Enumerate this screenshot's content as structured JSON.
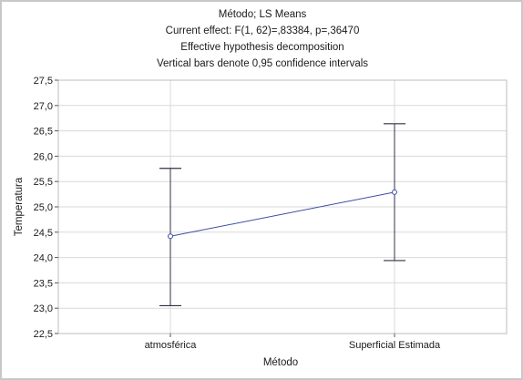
{
  "chart_data": {
    "type": "line",
    "title_lines": [
      "Método; LS Means",
      "Current effect: F(1, 62)=,83384, p=,36470",
      "Effective hypothesis decomposition",
      "Vertical bars denote 0,95 confidence intervals"
    ],
    "xlabel": "Método",
    "ylabel": "Temperatura",
    "categories": [
      "atmosférica",
      "Superficial Estimada"
    ],
    "series": [
      {
        "values": [
          24.42,
          25.29
        ],
        "ci_lower": [
          23.05,
          23.94
        ],
        "ci_upper": [
          25.76,
          26.64
        ]
      }
    ],
    "ylim": [
      22.5,
      27.5
    ],
    "yticks": [
      "22,5",
      "23,0",
      "23,5",
      "24,0",
      "24,5",
      "25,0",
      "25,5",
      "26,0",
      "26,5",
      "27,0",
      "27,5"
    ],
    "grid": true,
    "colors": {
      "line": "#3a4fa3",
      "errorbar": "#30304a",
      "grid": "#d9d9d9",
      "frame": "#c8c8c8"
    }
  }
}
